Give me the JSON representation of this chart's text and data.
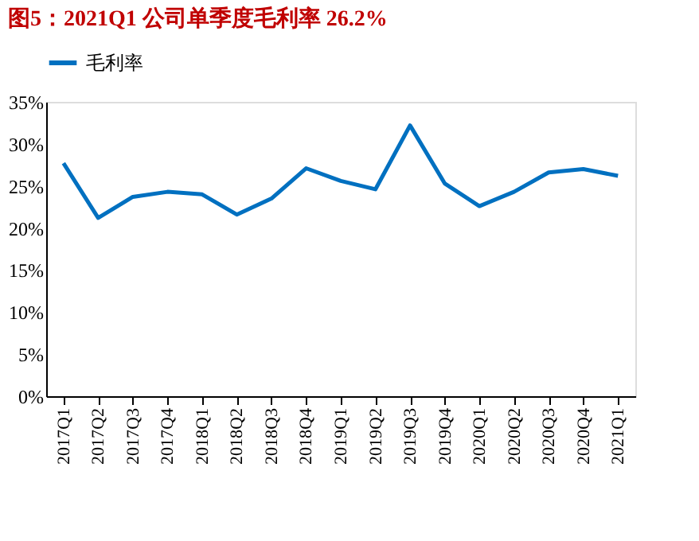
{
  "chart_data": {
    "type": "line",
    "title": "图5：2021Q1 公司单季度毛利率 26.2%",
    "categories": [
      "2017Q1",
      "2017Q2",
      "2017Q3",
      "2017Q4",
      "2018Q1",
      "2018Q2",
      "2018Q3",
      "2018Q4",
      "2019Q1",
      "2019Q2",
      "2019Q3",
      "2019Q4",
      "2020Q1",
      "2020Q2",
      "2020Q3",
      "2020Q4",
      "2021Q1"
    ],
    "series": [
      {
        "name": "毛利率",
        "color": "#0070c0",
        "values": [
          27.7,
          21.2,
          23.7,
          24.3,
          24.0,
          21.6,
          23.5,
          27.1,
          25.6,
          24.6,
          32.2,
          25.3,
          22.6,
          24.3,
          26.6,
          27.0,
          26.2
        ]
      }
    ],
    "ylim": [
      0,
      35
    ],
    "yticks": [
      {
        "value": 0,
        "label": "0%"
      },
      {
        "value": 5,
        "label": "5%"
      },
      {
        "value": 10,
        "label": "10%"
      },
      {
        "value": 15,
        "label": "15%"
      },
      {
        "value": 20,
        "label": "20%"
      },
      {
        "value": 25,
        "label": "25%"
      },
      {
        "value": 30,
        "label": "30%"
      },
      {
        "value": 35,
        "label": "35%"
      }
    ],
    "legend": "top",
    "grid": false,
    "marker": "none",
    "line_style": "solid"
  }
}
